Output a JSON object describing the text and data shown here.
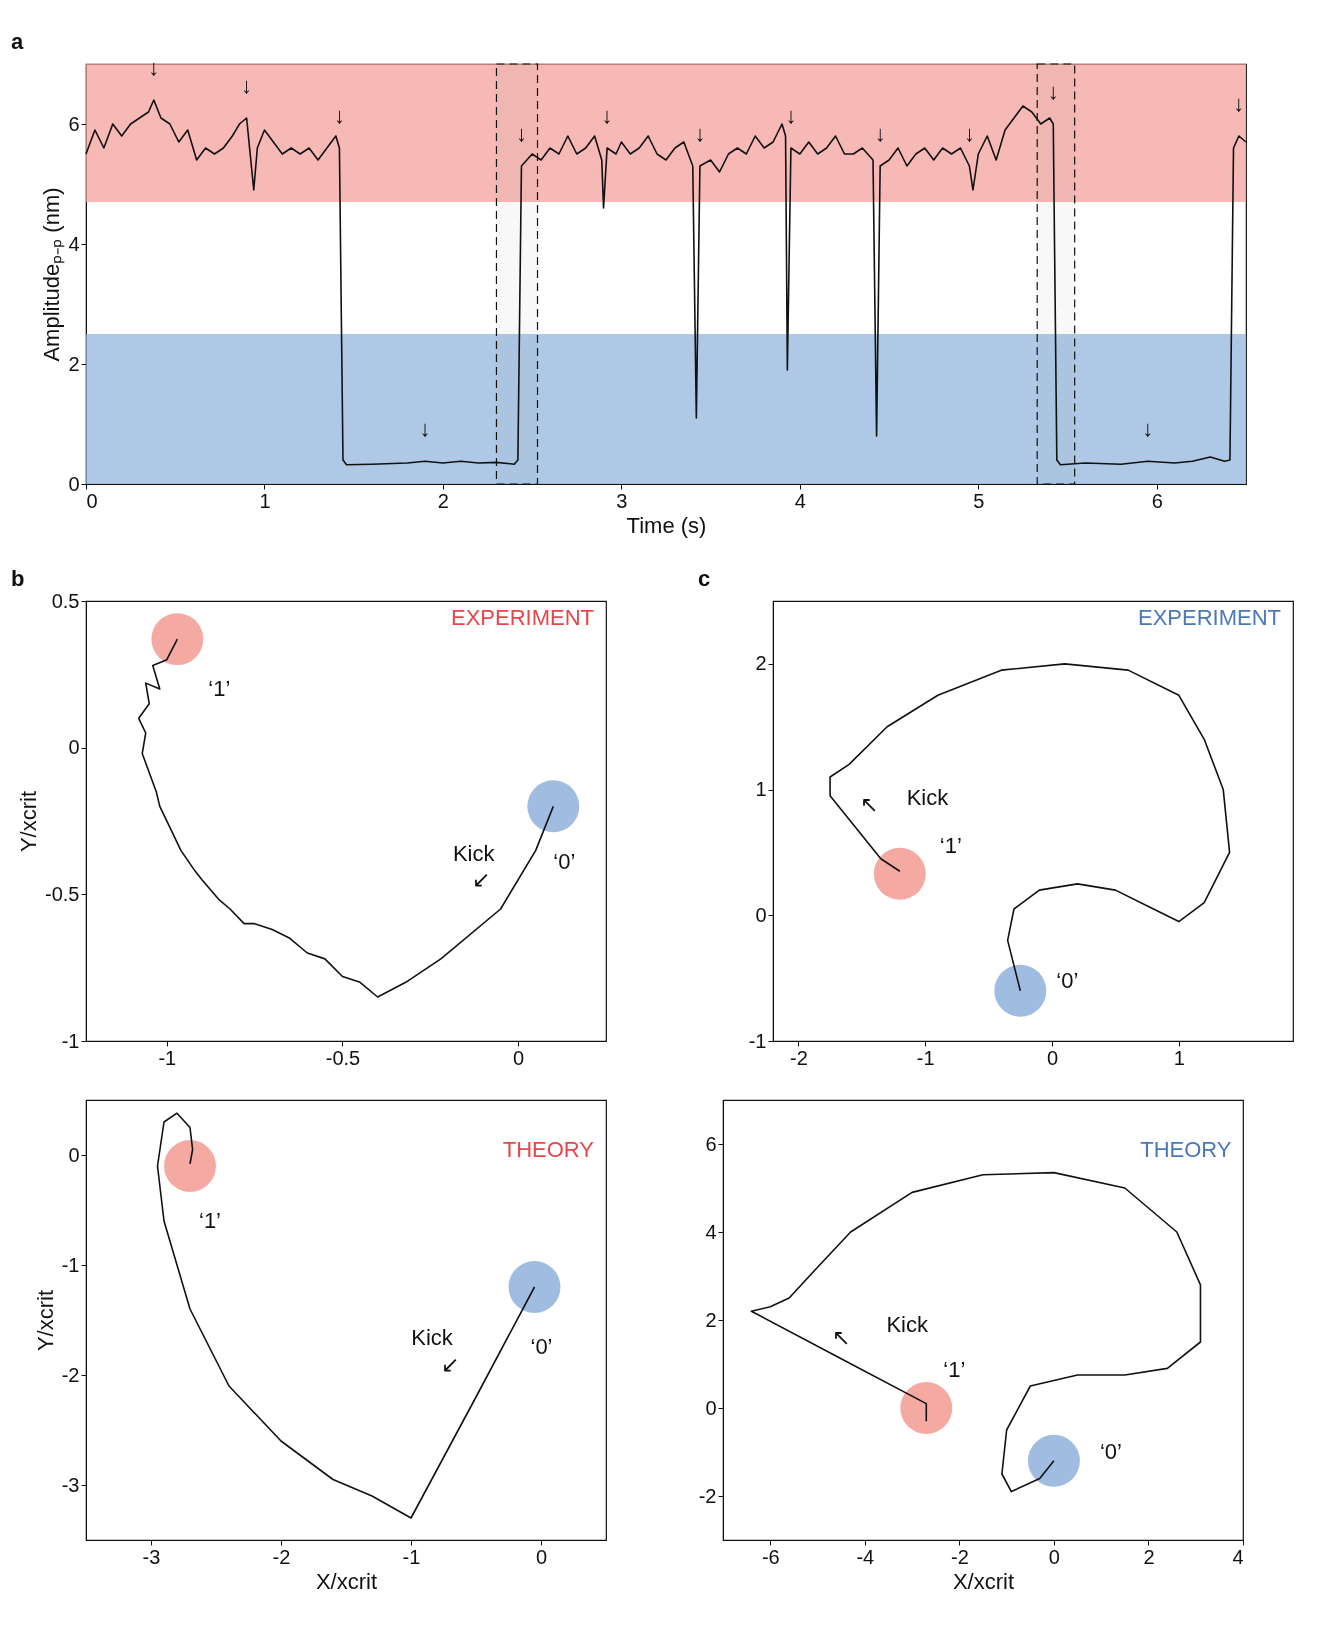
{
  "chart_data": [
    {
      "type": "line",
      "xlabel": "Time (s)",
      "ylabel": "Amplitudeₚ₋ₚ (nm)",
      "xlim": [
        0,
        6.5
      ],
      "ylim": [
        0,
        7
      ],
      "xticks": [
        0,
        1,
        2,
        3,
        4,
        5,
        6
      ],
      "yticks": [
        0,
        2,
        4,
        6
      ],
      "bands": [
        {
          "axis": "y",
          "from": 4.7,
          "to": 7,
          "color": "#f4a29c"
        },
        {
          "axis": "y",
          "from": 0,
          "to": 2.5,
          "color": "#93b6dd"
        },
        {
          "axis": "x",
          "from": 2.3,
          "to": 2.53
        },
        {
          "axis": "x",
          "from": 5.33,
          "to": 5.54
        }
      ],
      "annotations": [
        "a",
        {
          "text": "↓",
          "x": 0.38,
          "y": 6.4
        },
        {
          "text": "↓",
          "x": 0.9,
          "y": 6.1
        },
        {
          "text": "↓",
          "x": 1.42,
          "y": 5.6
        },
        {
          "text": "↓",
          "x": 1.9,
          "y": 0.38
        },
        {
          "text": "↓",
          "x": 2.44,
          "y": 5.3
        },
        {
          "text": "↓",
          "x": 2.92,
          "y": 5.6
        },
        {
          "text": "↓",
          "x": 3.44,
          "y": 5.3
        },
        {
          "text": "↓",
          "x": 3.95,
          "y": 5.6
        },
        {
          "text": "↓",
          "x": 4.45,
          "y": 5.3
        },
        {
          "text": "↓",
          "x": 4.95,
          "y": 5.3
        },
        {
          "text": "↓",
          "x": 5.42,
          "y": 6.0
        },
        {
          "text": "↓",
          "x": 5.95,
          "y": 0.38
        },
        {
          "text": "↓",
          "x": 6.46,
          "y": 5.8
        }
      ],
      "series": [
        {
          "color": "#111111",
          "x": [
            0,
            0.05,
            0.1,
            0.15,
            0.2,
            0.25,
            0.3,
            0.35,
            0.38,
            0.42,
            0.47,
            0.52,
            0.57,
            0.62,
            0.67,
            0.72,
            0.77,
            0.82,
            0.86,
            0.9,
            0.92,
            0.94,
            0.96,
            1.0,
            1.05,
            1.1,
            1.15,
            1.2,
            1.25,
            1.3,
            1.35,
            1.4,
            1.42,
            1.44,
            1.46,
            1.6,
            1.8,
            1.9,
            2.0,
            2.1,
            2.2,
            2.3,
            2.4,
            2.42,
            2.44,
            2.5,
            2.55,
            2.6,
            2.65,
            2.7,
            2.75,
            2.8,
            2.85,
            2.89,
            2.9,
            2.92,
            2.97,
            3.0,
            3.05,
            3.1,
            3.15,
            3.2,
            3.25,
            3.3,
            3.35,
            3.4,
            3.42,
            3.44,
            3.5,
            3.55,
            3.6,
            3.65,
            3.7,
            3.75,
            3.8,
            3.85,
            3.9,
            3.92,
            3.93,
            3.95,
            4.0,
            4.05,
            4.1,
            4.15,
            4.2,
            4.25,
            4.3,
            4.35,
            4.41,
            4.43,
            4.45,
            4.5,
            4.55,
            4.6,
            4.65,
            4.7,
            4.75,
            4.8,
            4.85,
            4.9,
            4.95,
            4.97,
            5.0,
            5.05,
            5.1,
            5.15,
            5.2,
            5.25,
            5.3,
            5.35,
            5.4,
            5.42,
            5.44,
            5.46,
            5.6,
            5.8,
            5.95,
            6.1,
            6.2,
            6.3,
            6.38,
            6.41,
            6.43,
            6.46,
            6.5
          ],
          "values": [
            5.5,
            5.9,
            5.6,
            6.0,
            5.8,
            6.0,
            6.1,
            6.2,
            6.4,
            6.1,
            6.0,
            5.7,
            5.9,
            5.4,
            5.6,
            5.5,
            5.6,
            5.8,
            6.0,
            6.1,
            5.5,
            4.9,
            5.6,
            5.9,
            5.7,
            5.5,
            5.6,
            5.5,
            5.6,
            5.4,
            5.6,
            5.8,
            5.6,
            0.4,
            0.32,
            0.33,
            0.35,
            0.38,
            0.35,
            0.38,
            0.35,
            0.36,
            0.33,
            0.4,
            5.3,
            5.5,
            5.4,
            5.6,
            5.5,
            5.8,
            5.5,
            5.6,
            5.8,
            5.4,
            4.6,
            5.6,
            5.5,
            5.7,
            5.5,
            5.6,
            5.8,
            5.5,
            5.4,
            5.6,
            5.7,
            5.3,
            1.1,
            5.3,
            5.4,
            5.2,
            5.5,
            5.6,
            5.5,
            5.8,
            5.6,
            5.7,
            6.0,
            5.8,
            1.9,
            5.6,
            5.5,
            5.7,
            5.5,
            5.6,
            5.8,
            5.5,
            5.5,
            5.6,
            5.4,
            0.8,
            5.3,
            5.4,
            5.6,
            5.3,
            5.5,
            5.6,
            5.4,
            5.6,
            5.5,
            5.6,
            5.3,
            4.9,
            5.5,
            5.8,
            5.4,
            5.9,
            6.1,
            6.3,
            6.2,
            6.0,
            6.1,
            6.0,
            0.4,
            0.32,
            0.35,
            0.33,
            0.38,
            0.35,
            0.38,
            0.45,
            0.38,
            0.4,
            5.6,
            5.8,
            5.7
          ]
        }
      ]
    },
    {
      "type": "line",
      "title": "EXPERIMENT",
      "ylabel": "Y/xcrit",
      "xlim": [
        -1.23,
        0.25
      ],
      "ylim": [
        -1,
        0.5
      ],
      "xticks": [
        -1,
        -0.5,
        0
      ],
      "yticks": [
        -1,
        -0.5,
        0,
        0.5
      ],
      "annotations": [
        "b",
        {
          "text": "‘1’",
          "x": -0.97,
          "y": 0.37
        },
        {
          "text": "‘0’",
          "x": 0.1,
          "y": -0.2
        },
        {
          "text": "Kick",
          "x": 0.05,
          "y": -0.35
        },
        {
          "text": "↙",
          "x": 0.05,
          "y": -0.35
        }
      ],
      "series": [
        {
          "type": "bubble",
          "color": "#f29a93",
          "x": [
            -0.97
          ],
          "values": [
            0.37
          ],
          "sizes": [
            1
          ]
        },
        {
          "type": "bubble",
          "color": "#8fb0dc",
          "x": [
            0.1
          ],
          "values": [
            -0.2
          ],
          "sizes": [
            1
          ]
        },
        {
          "color": "#111111",
          "x": [
            0.1,
            0.05,
            -0.05,
            -0.22,
            -0.32,
            -0.4,
            -0.45,
            -0.5,
            -0.55,
            -0.6,
            -0.65,
            -0.7,
            -0.75,
            -0.78,
            -0.82,
            -0.85,
            -0.9,
            -0.92,
            -0.96,
            -0.98,
            -1.02,
            -1.03,
            -1.07,
            -1.06,
            -1.08,
            -1.05,
            -1.06,
            -1.02,
            -1.04,
            -1.0,
            -0.97
          ],
          "values": [
            -0.2,
            -0.35,
            -0.55,
            -0.72,
            -0.8,
            -0.85,
            -0.8,
            -0.78,
            -0.72,
            -0.7,
            -0.65,
            -0.62,
            -0.6,
            -0.6,
            -0.55,
            -0.52,
            -0.45,
            -0.42,
            -0.35,
            -0.3,
            -0.2,
            -0.15,
            -0.02,
            0.05,
            0.1,
            0.15,
            0.22,
            0.2,
            0.28,
            0.3,
            0.37
          ]
        }
      ]
    },
    {
      "type": "line",
      "title": "EXPERIMENT",
      "xlim": [
        -2.2,
        1.9
      ],
      "ylim": [
        -1,
        2.5
      ],
      "xticks": [
        -2,
        -1,
        0,
        1
      ],
      "yticks": [
        -1,
        0,
        1,
        2
      ],
      "annotations": [
        "c",
        {
          "text": "‘1’",
          "x": -1.2,
          "y": 0.33
        },
        {
          "text": "‘0’",
          "x": -0.25,
          "y": -0.6
        },
        {
          "text": "Kick",
          "x": -1.55,
          "y": 0.7
        },
        {
          "text": "↖",
          "x": -1.55,
          "y": 0.7
        }
      ],
      "series": [
        {
          "type": "bubble",
          "color": "#f29a93",
          "x": [
            -1.2
          ],
          "values": [
            0.33
          ],
          "sizes": [
            1
          ]
        },
        {
          "type": "bubble",
          "color": "#8fb0dc",
          "x": [
            -0.25
          ],
          "values": [
            -0.6
          ],
          "sizes": [
            1
          ]
        },
        {
          "color": "#111111",
          "x": [
            -0.25,
            -0.35,
            -0.3,
            -0.1,
            0.2,
            0.5,
            0.8,
            1.0,
            1.2,
            1.4,
            1.35,
            1.2,
            1.0,
            0.6,
            0.1,
            -0.4,
            -0.9,
            -1.3,
            -1.6,
            -1.75,
            -1.75,
            -1.55,
            -1.35,
            -1.2
          ],
          "values": [
            -0.6,
            -0.2,
            0.05,
            0.2,
            0.25,
            0.2,
            0.05,
            -0.05,
            0.1,
            0.5,
            1.0,
            1.4,
            1.75,
            1.95,
            2.0,
            1.95,
            1.75,
            1.5,
            1.2,
            1.1,
            0.95,
            0.7,
            0.45,
            0.35
          ]
        }
      ]
    },
    {
      "type": "line",
      "title": "THEORY",
      "xlabel": "X/xcrit",
      "ylabel": "Y/xcrit",
      "xlim": [
        -3.5,
        0.5
      ],
      "ylim": [
        -3.5,
        0.5
      ],
      "xticks": [
        -3,
        -2,
        -1,
        0
      ],
      "yticks": [
        -3,
        -2,
        -1,
        0
      ],
      "annotations": [
        {
          "text": "‘1’",
          "x": -2.7,
          "y": -0.1
        },
        {
          "text": "‘0’",
          "x": -0.05,
          "y": -1.2
        },
        {
          "text": "Kick",
          "x": -0.5,
          "y": -2.2
        },
        {
          "text": "↙",
          "x": -0.5,
          "y": -2.2
        }
      ],
      "series": [
        {
          "type": "bubble",
          "color": "#f29a93",
          "x": [
            -2.7
          ],
          "values": [
            -0.1
          ],
          "sizes": [
            1
          ]
        },
        {
          "type": "bubble",
          "color": "#8fb0dc",
          "x": [
            -0.05
          ],
          "values": [
            -1.2
          ],
          "sizes": [
            1
          ]
        },
        {
          "color": "#111111",
          "x": [
            -0.05,
            -0.5,
            -1,
            -1.3,
            -1.6,
            -2.0,
            -2.4,
            -2.7,
            -2.9,
            -2.95,
            -2.9,
            -2.8,
            -2.7,
            -2.68,
            -2.7
          ],
          "values": [
            -1.2,
            -2.2,
            -3.3,
            -3.1,
            -2.95,
            -2.6,
            -2.1,
            -1.4,
            -0.6,
            -0.1,
            0.3,
            0.38,
            0.25,
            0.05,
            -0.08
          ]
        }
      ]
    },
    {
      "type": "line",
      "title": "THEORY",
      "xlabel": "X/xcrit",
      "xlim": [
        -7,
        4
      ],
      "ylim": [
        -3,
        7
      ],
      "xticks": [
        -6,
        -4,
        -2,
        0,
        2,
        4
      ],
      "yticks": [
        -2,
        0,
        2,
        4,
        6
      ],
      "annotations": [
        {
          "text": "‘1’",
          "x": -2.7,
          "y": 0
        },
        {
          "text": "‘0’",
          "x": 0,
          "y": -1.2
        },
        {
          "text": "Kick",
          "x": -4.5,
          "y": 1.12
        },
        {
          "text": "↖",
          "x": -4.5,
          "y": 1.12
        }
      ],
      "series": [
        {
          "type": "bubble",
          "color": "#f29a93",
          "x": [
            -2.7
          ],
          "values": [
            0
          ],
          "sizes": [
            1
          ]
        },
        {
          "type": "bubble",
          "color": "#8fb0dc",
          "x": [
            0
          ],
          "values": [
            -1.2
          ],
          "sizes": [
            1
          ]
        },
        {
          "color": "#111111",
          "x": [
            0,
            -0.3,
            -0.9,
            -1.1,
            -1.0,
            -0.5,
            0.5,
            1.5,
            2.4,
            3.1,
            3.1,
            2.6,
            1.5,
            0.0,
            -1.5,
            -3.0,
            -4.3,
            -5.0,
            -5.6,
            -6.0,
            -6.4,
            -4.5,
            -2.7,
            -2.7
          ],
          "values": [
            -1.2,
            -1.6,
            -1.9,
            -1.5,
            -0.5,
            0.5,
            0.75,
            0.75,
            0.9,
            1.5,
            2.8,
            4.0,
            5.0,
            5.35,
            5.3,
            4.9,
            4.0,
            3.2,
            2.5,
            2.3,
            2.2,
            1.12,
            0.1,
            -0.3
          ]
        }
      ]
    }
  ]
}
